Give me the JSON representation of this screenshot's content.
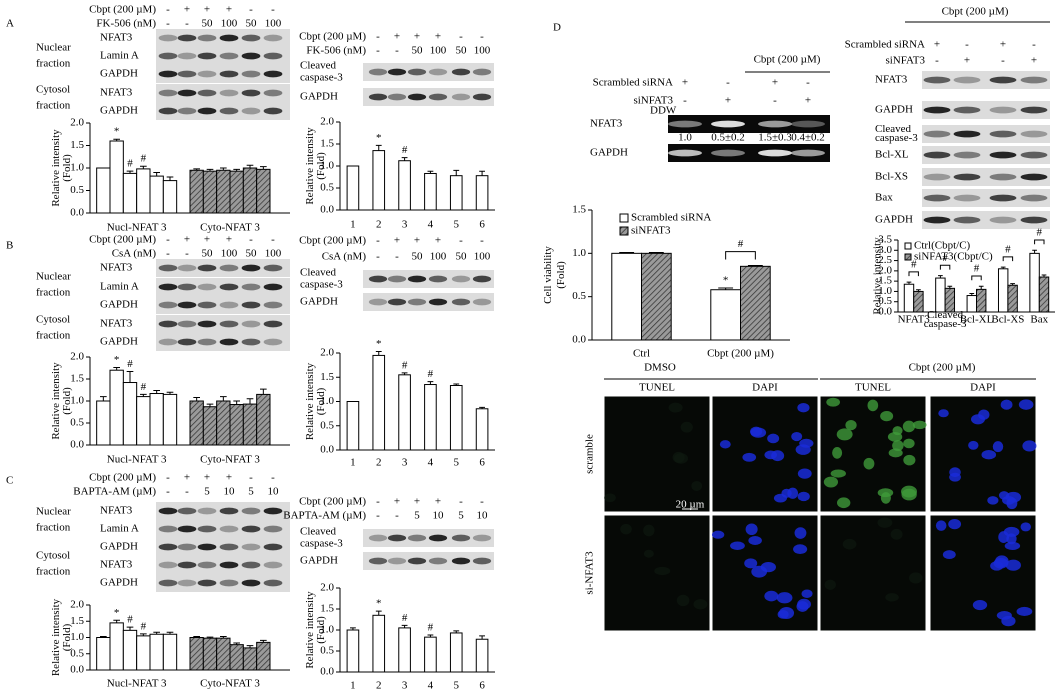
{
  "panel_labels": [
    "A",
    "B",
    "C",
    "D"
  ],
  "blots": [
    {
      "conditions": [
        {
          "name": "Cbpt (200 µM)",
          "marks": [
            "-",
            "+",
            "+",
            "+",
            "-",
            "-"
          ]
        },
        {
          "name": "FK-506 (nM)",
          "marks": [
            "-",
            "-",
            "50",
            "100",
            "50",
            "100"
          ]
        }
      ],
      "fractions": [
        [
          "Nuclear",
          "fraction"
        ],
        [
          "Cytosol",
          "fraction"
        ]
      ],
      "rows": [
        "NFAT3",
        "Lamin A",
        "GAPDH",
        "NFAT3",
        "GAPDH"
      ]
    },
    {
      "conditions": [
        {
          "name": "Cbpt (200 µM)",
          "marks": [
            "-",
            "+",
            "+",
            "+",
            "-",
            "-"
          ]
        },
        {
          "name": "FK-506 (nM)",
          "marks": [
            "-",
            "-",
            "50",
            "100",
            "50",
            "100"
          ]
        }
      ],
      "rows": [
        [
          "Cleaved",
          "caspase-3"
        ],
        "GAPDH"
      ]
    },
    {
      "conditions": [
        {
          "name": "Cbpt (200 µM)",
          "marks": [
            "-",
            "+",
            "+",
            "+",
            "-",
            "-"
          ]
        },
        {
          "name": "CsA (nM)",
          "marks": [
            "-",
            "-",
            "50",
            "100",
            "50",
            "100"
          ]
        }
      ],
      "fractions": [
        [
          "Nuclear",
          "fraction"
        ],
        [
          "Cytosol",
          "fraction"
        ]
      ],
      "rows": [
        "NFAT3",
        "Lamin A",
        "GAPDH",
        "NFAT3",
        "GAPDH"
      ]
    },
    {
      "conditions": [
        {
          "name": "Cbpt (200 µM)",
          "marks": [
            "-",
            "+",
            "+",
            "+",
            "-",
            "-"
          ]
        },
        {
          "name": "CsA (nM)",
          "marks": [
            "-",
            "-",
            "50",
            "100",
            "50",
            "100"
          ]
        }
      ],
      "rows": [
        [
          "Cleaved",
          "caspase-3"
        ],
        "GAPDH"
      ]
    },
    {
      "conditions": [
        {
          "name": "Cbpt (200 µM)",
          "marks": [
            "-",
            "+",
            "+",
            "+",
            "-",
            "-"
          ]
        },
        {
          "name": "BAPTA-AM (µM)",
          "marks": [
            "-",
            "-",
            "5",
            "10",
            "5",
            "10"
          ]
        }
      ],
      "fractions": [
        [
          "Nuclear",
          "fraction"
        ],
        [
          "Cytosol",
          "fraction"
        ]
      ],
      "rows": [
        "NFAT3",
        "Lamin A",
        "GAPDH",
        "NFAT3",
        "GAPDH"
      ]
    },
    {
      "conditions": [
        {
          "name": "Cbpt (200 µM)",
          "marks": [
            "-",
            "+",
            "+",
            "+",
            "-",
            "-"
          ]
        },
        {
          "name": "BAPTA-AM (µM)",
          "marks": [
            "-",
            "-",
            "5",
            "10",
            "5",
            "10"
          ]
        }
      ],
      "rows": [
        [
          "Cleaved",
          "caspase-3"
        ],
        "GAPDH"
      ]
    },
    {
      "group": "Cbpt (200 µM)",
      "conditions": [
        {
          "name": "Scrambled siRNA",
          "marks": [
            "+",
            "-",
            "+",
            "-"
          ]
        },
        {
          "name": "siNFAT3",
          "marks": [
            "-",
            "+",
            "-",
            "+"
          ]
        }
      ],
      "lane_note": "DDW",
      "rows": [
        "NFAT3",
        "GAPDH"
      ],
      "quantification": [
        "1.0",
        "0.5±0.2",
        "1.5±0.3",
        "0.4±0.2"
      ]
    },
    {
      "group": "Cbpt (200 µM)",
      "conditions": [
        {
          "name": "Scrambled siRNA",
          "marks": [
            "+",
            "-",
            "+",
            "-"
          ]
        },
        {
          "name": "siNFAT3",
          "marks": [
            "-",
            "+",
            "-",
            "+"
          ]
        }
      ],
      "rows": [
        "NFAT3",
        "GAPDH",
        [
          "Cleaved",
          "caspase-3"
        ],
        "Bcl-XL",
        "Bcl-XS",
        "Bax",
        "GAPDH"
      ]
    }
  ],
  "chart_data": [
    {
      "type": "bar",
      "ylabel": [
        "Relative intensity",
        "(Fold)"
      ],
      "ylim": [
        0,
        2
      ],
      "yticks": [
        {
          "value": 0,
          "label": "0.0"
        },
        0.5,
        {
          "value": 1,
          "label": "1.0"
        },
        1.5,
        {
          "value": 2,
          "label": "2.0"
        }
      ],
      "groups": [
        {
          "label": "Nucl-NFAT 3",
          "color": "#ffffff",
          "values": [
            1.0,
            1.6,
            0.88,
            0.98,
            0.82,
            0.72
          ],
          "errors": [
            0,
            0.04,
            0.05,
            0.06,
            0.08,
            0.08
          ],
          "marks_above": [
            null,
            "*",
            "#",
            "#",
            null,
            null
          ]
        },
        {
          "label": "Cyto-NFAT 3",
          "color": "#8a8a8a",
          "hatch": true,
          "values": [
            0.95,
            0.93,
            0.95,
            0.93,
            1.0,
            0.97
          ],
          "errors": [
            0.03,
            0.04,
            0.05,
            0.04,
            0.06,
            0.06
          ]
        }
      ]
    },
    {
      "type": "bar",
      "ylabel": [
        "Relative intensity",
        "(Fold)"
      ],
      "ylim": [
        0,
        2
      ],
      "yticks": [
        {
          "value": 0,
          "label": "0.0"
        },
        0.5,
        {
          "value": 1,
          "label": "1.0"
        },
        1.5,
        {
          "value": 2,
          "label": "2.0"
        }
      ],
      "categories": [
        "1",
        "2",
        "3",
        "4",
        "5",
        "6"
      ],
      "color": "#ffffff",
      "values": [
        1.0,
        1.35,
        1.12,
        0.83,
        0.78,
        0.78
      ],
      "errors": [
        0,
        0.12,
        0.07,
        0.05,
        0.12,
        0.1
      ],
      "marks_above": [
        null,
        "*",
        "#",
        null,
        null,
        null
      ]
    },
    {
      "type": "bar",
      "ylabel": [
        "Relative intensity",
        "(Fold)"
      ],
      "ylim": [
        0,
        2
      ],
      "yticks": [
        {
          "value": 0,
          "label": "0.0"
        },
        0.5,
        {
          "value": 1,
          "label": "1.0"
        },
        1.5,
        {
          "value": 2,
          "label": "2.0"
        }
      ],
      "groups": [
        {
          "label": "Nucl-NFAT 3",
          "color": "#ffffff",
          "values": [
            1.0,
            1.7,
            1.42,
            1.1,
            1.17,
            1.15
          ],
          "errors": [
            0.1,
            0.06,
            0.25,
            0.05,
            0.07,
            0.05
          ],
          "marks_above": [
            null,
            "*",
            "#",
            "#",
            null,
            null
          ]
        },
        {
          "label": "Cyto-NFAT 3",
          "color": "#8a8a8a",
          "hatch": true,
          "values": [
            1.0,
            0.87,
            1.0,
            0.92,
            0.93,
            1.15
          ],
          "errors": [
            0.08,
            0.06,
            0.1,
            0.08,
            0.12,
            0.12
          ]
        }
      ]
    },
    {
      "type": "bar",
      "ylabel": [
        "Relative intensity",
        "(Fold)"
      ],
      "ylim": [
        0,
        2
      ],
      "yticks": [
        {
          "value": 0,
          "label": "0.0"
        },
        0.5,
        {
          "value": 1,
          "label": "1.0"
        },
        1.5,
        {
          "value": 2,
          "label": "2.0"
        }
      ],
      "categories": [
        "1",
        "2",
        "3",
        "4",
        "5",
        "6"
      ],
      "color": "#ffffff",
      "values": [
        1.0,
        1.95,
        1.55,
        1.35,
        1.33,
        0.85
      ],
      "errors": [
        0,
        0.08,
        0.04,
        0.06,
        0.03,
        0.03
      ],
      "marks_above": [
        null,
        "*",
        "#",
        "#",
        null,
        null
      ]
    },
    {
      "type": "bar",
      "ylabel": [
        "Relative intensity",
        "(Fold)"
      ],
      "ylim": [
        0,
        2
      ],
      "yticks": [
        {
          "value": 0,
          "label": "0.0"
        },
        0.5,
        {
          "value": 1,
          "label": "1.0"
        },
        1.5,
        {
          "value": 2,
          "label": "2.0"
        }
      ],
      "groups": [
        {
          "label": "Nucl-NFAT 3",
          "color": "#ffffff",
          "values": [
            1.0,
            1.45,
            1.22,
            1.05,
            1.1,
            1.1
          ],
          "errors": [
            0.03,
            0.08,
            0.1,
            0.06,
            0.06,
            0.06
          ],
          "marks_above": [
            null,
            "*",
            "#",
            "#",
            null,
            null
          ]
        },
        {
          "label": "Cyto-NFAT 3",
          "color": "#8a8a8a",
          "hatch": true,
          "values": [
            1.0,
            0.98,
            0.98,
            0.78,
            0.68,
            0.85
          ],
          "errors": [
            0.03,
            0.03,
            0.05,
            0.05,
            0.07,
            0.06
          ]
        }
      ]
    },
    {
      "type": "bar",
      "ylabel": [
        "Relative intensity",
        "(Fold)"
      ],
      "ylim": [
        0,
        2
      ],
      "yticks": [
        {
          "value": 0,
          "label": "0.0"
        },
        0.5,
        {
          "value": 1,
          "label": "1.0"
        },
        1.5,
        {
          "value": 2,
          "label": "2.0"
        }
      ],
      "categories": [
        "1",
        "2",
        "3",
        "4",
        "5",
        "6"
      ],
      "color": "#ffffff",
      "values": [
        1.0,
        1.35,
        1.05,
        0.83,
        0.93,
        0.78
      ],
      "errors": [
        0.05,
        0.1,
        0.06,
        0.05,
        0.05,
        0.08
      ],
      "marks_above": [
        null,
        "*",
        "#",
        "#",
        null,
        null
      ]
    },
    {
      "type": "grouped_bar",
      "ylabel": [
        "Cell viability",
        "(Fold)"
      ],
      "ylim": [
        0,
        1.5
      ],
      "yticks": [
        {
          "value": 0,
          "label": "0.0"
        },
        0.5,
        {
          "value": 1,
          "label": "1.0"
        },
        1.5
      ],
      "legend": "top-left",
      "categories": [
        "Ctrl",
        "Cbpt (200 µM)"
      ],
      "series": [
        {
          "name": "Scrambled siRNA",
          "color": "#ffffff",
          "values": [
            1.0,
            0.58
          ],
          "errors": [
            0.01,
            0.02
          ],
          "marks_above": [
            null,
            "*"
          ]
        },
        {
          "name": "siNFAT3",
          "color": "#8a8a8a",
          "hatch": true,
          "values": [
            1.0,
            0.85
          ],
          "errors": [
            0.01,
            0.01
          ]
        }
      ],
      "bracket_labels": [
        null,
        "#"
      ]
    },
    {
      "type": "grouped_bar",
      "ylabel": "Relative intensity",
      "ylim": [
        0,
        3.5
      ],
      "yticks": [
        {
          "value": 0,
          "label": "0.0"
        },
        0.5,
        {
          "value": 1,
          "label": "1.0"
        },
        1.5,
        {
          "value": 2,
          "label": "2.0"
        },
        2.5,
        {
          "value": 3,
          "label": "3.0"
        },
        3.5
      ],
      "legend": "top-left",
      "categories": [
        "NFAT3",
        [
          "Cleaved",
          "caspase-3"
        ],
        "Bcl-XL",
        "Bcl-XS",
        "Bax"
      ],
      "series": [
        {
          "name": "Ctrl(Cbpt/C)",
          "color": "#ffffff",
          "values": [
            1.35,
            1.65,
            0.8,
            2.1,
            2.85
          ],
          "errors": [
            0.1,
            0.12,
            0.1,
            0.08,
            0.15
          ]
        },
        {
          "name": "siNFAT3(Cbpt/C)",
          "color": "#8a8a8a",
          "hatch": true,
          "values": [
            1.0,
            1.15,
            1.1,
            1.3,
            1.7
          ],
          "errors": [
            0.08,
            0.1,
            0.15,
            0.08,
            0.1
          ]
        }
      ],
      "bracket_labels": [
        "#",
        "#",
        "#",
        "#",
        "#"
      ]
    }
  ],
  "micrographs": {
    "conditions": [
      "DMSO",
      "Cbpt (200 µM)"
    ],
    "stains": [
      "TUNEL",
      "DAPI",
      "TUNEL",
      "DAPI"
    ],
    "rows": [
      "scramble",
      "si-NFAT3"
    ],
    "scale_bar": "20 µm"
  }
}
